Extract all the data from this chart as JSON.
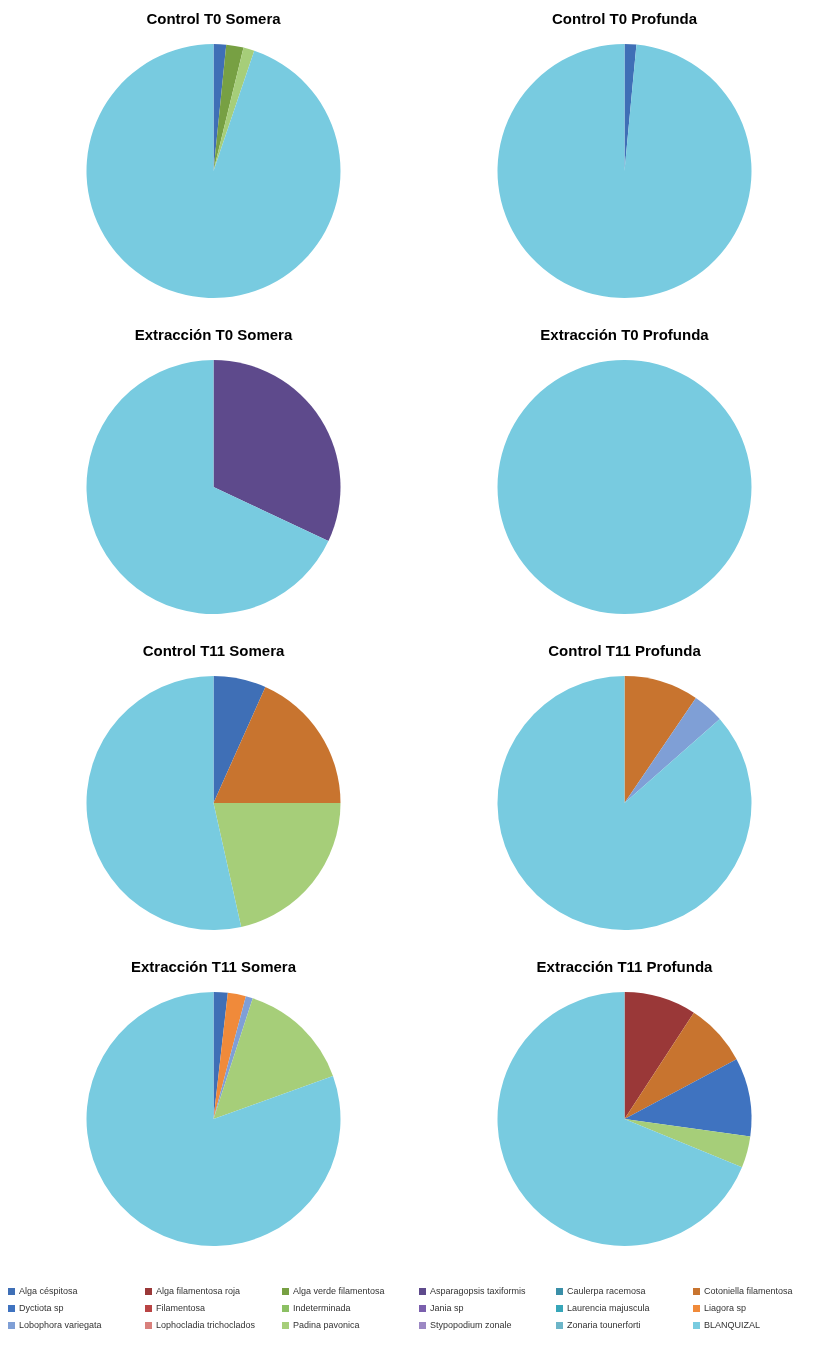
{
  "chart_data": [
    {
      "type": "pie",
      "title": "Control T0 Somera",
      "legend": "bottom",
      "categories": [
        "Alga céspitosa",
        "Alga filamentosa roja",
        "Alga verde filamentosa",
        "Asparagopsis taxiformis",
        "Caulerpa racemosa",
        "Cotoniella filamentosa",
        "Dyctiota sp",
        "Filamentosa",
        "Indeterminada",
        "Jania sp",
        "Laurencia majuscula",
        "Liagora sp",
        "Lobophora variegata",
        "Lophocladia trichoclados",
        "Padina pavonica",
        "Stypopodium zonale",
        "Zonaria tounerforti",
        "BLANQUIZAL"
      ],
      "values": [
        1.6,
        0,
        2.2,
        0,
        0,
        0,
        0,
        0,
        0,
        0,
        0,
        0,
        0,
        0,
        1.4,
        0,
        0,
        94.8
      ],
      "colors": [
        "#3f6fb6",
        "#9a3838",
        "#77a043",
        "#5e4a8c",
        "#3a8fa8",
        "#c8742f",
        "#3f73c0",
        "#b94444",
        "#8cc063",
        "#7a5fad",
        "#37a6b9",
        "#f08a3a",
        "#7f9fd6",
        "#d9807c",
        "#a6ce79",
        "#9c88c4",
        "#6cb5c8",
        "#78cbe0"
      ]
    },
    {
      "type": "pie",
      "title": "Control T0  Profunda",
      "values": [
        1.5,
        98.5
      ],
      "colors": [
        "#3f6fb6",
        "#78cbe0"
      ]
    },
    {
      "type": "pie",
      "title": "Extracción T0 Somera",
      "values": [
        32,
        68
      ],
      "colors": [
        "#5e4a8c",
        "#78cbe0"
      ]
    },
    {
      "type": "pie",
      "title": "Extracción T0 Profunda",
      "values": [
        100
      ],
      "colors": [
        "#78cbe0"
      ]
    },
    {
      "type": "pie",
      "title": "Control T11 Somera",
      "values": [
        6.7,
        18.3,
        21.5,
        53.5
      ],
      "colors": [
        "#3f6fb6",
        "#c8742f",
        "#a6ce79",
        "#78cbe0"
      ]
    },
    {
      "type": "pie",
      "title": "Control T11 Profunda",
      "values": [
        9.5,
        4,
        86.5
      ],
      "colors": [
        "#c8742f",
        "#7f9fd6",
        "#78cbe0"
      ]
    },
    {
      "type": "pie",
      "title": "Extracción T11 Somera",
      "values": [
        1.8,
        2.3,
        0.9,
        14.5,
        80.5
      ],
      "colors": [
        "#3f6fb6",
        "#f08a3a",
        "#7f9fd6",
        "#a6ce79",
        "#78cbe0"
      ]
    },
    {
      "type": "pie",
      "title": "Extracción T11 Profunda",
      "values": [
        9.2,
        8,
        10,
        4,
        68.8
      ],
      "colors": [
        "#9a3838",
        "#c8742f",
        "#3f73c0",
        "#a6ce79",
        "#78cbe0"
      ]
    }
  ]
}
